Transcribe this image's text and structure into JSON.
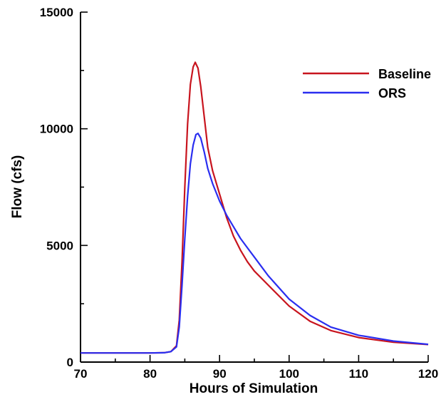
{
  "chart_data": {
    "type": "line",
    "xlabel": "Hours of Simulation",
    "ylabel": "Flow (cfs)",
    "xlim": [
      70,
      120
    ],
    "ylim": [
      0,
      15000
    ],
    "xticks": [
      70,
      80,
      90,
      100,
      110,
      120
    ],
    "yticks": [
      0,
      5000,
      10000,
      15000
    ],
    "grid": false,
    "legend_position": "top-right",
    "series": [
      {
        "name": "Baseline",
        "color": "#c8141e",
        "x": [
          70,
          75,
          80,
          82,
          83,
          83.8,
          84.2,
          84.6,
          85.0,
          85.4,
          85.8,
          86.2,
          86.5,
          86.9,
          87.3,
          87.8,
          88.3,
          89,
          90,
          91,
          92,
          93,
          94,
          95,
          97,
          100,
          103,
          106,
          110,
          115,
          120
        ],
        "y": [
          390,
          390,
          390,
          400,
          450,
          700,
          1800,
          4300,
          7500,
          10200,
          11900,
          12650,
          12850,
          12600,
          11800,
          10500,
          9200,
          8200,
          7200,
          6200,
          5400,
          4800,
          4300,
          3900,
          3300,
          2400,
          1750,
          1350,
          1050,
          850,
          750
        ]
      },
      {
        "name": "ORS",
        "color": "#2a2ef0",
        "x": [
          70,
          75,
          80,
          82,
          83,
          83.8,
          84.2,
          84.6,
          85.0,
          85.4,
          85.8,
          86.2,
          86.6,
          86.9,
          87.3,
          87.8,
          88.3,
          89,
          90,
          91,
          92,
          93,
          94,
          95,
          97,
          100,
          103,
          106,
          110,
          115,
          120
        ],
        "y": [
          390,
          390,
          390,
          400,
          450,
          650,
          1500,
          3300,
          5300,
          7100,
          8500,
          9300,
          9750,
          9800,
          9600,
          9000,
          8300,
          7650,
          6900,
          6300,
          5800,
          5300,
          4900,
          4500,
          3700,
          2700,
          2000,
          1500,
          1150,
          900,
          760
        ]
      }
    ]
  }
}
